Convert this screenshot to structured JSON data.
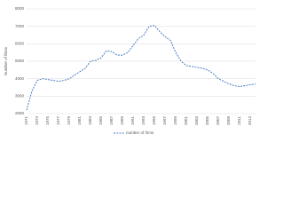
{
  "chart_data": {
    "type": "line",
    "y_label": "Number of firms",
    "categories": [
      "1971",
      null,
      "1973",
      null,
      "1975",
      null,
      "1977",
      null,
      "1979",
      null,
      "1981",
      null,
      "1983",
      null,
      "1985",
      null,
      "1987",
      null,
      "1989",
      null,
      "1991",
      null,
      "1993",
      null,
      "1995",
      null,
      "1997",
      null,
      "1999",
      null,
      "2001",
      null,
      "2003",
      null,
      "2005",
      null,
      "2007",
      null,
      "2009",
      null,
      "2011",
      null,
      "2013",
      null
    ],
    "series": [
      {
        "name": "number of firms",
        "color": "#4a7fc1",
        "values": [
          2200,
          3300,
          3900,
          4000,
          3950,
          3900,
          3850,
          3900,
          4000,
          4200,
          4400,
          4600,
          5000,
          5050,
          5200,
          5600,
          5550,
          5350,
          5350,
          5500,
          5900,
          6300,
          6500,
          7000,
          7050,
          6700,
          6400,
          6200,
          5500,
          5000,
          4750,
          4700,
          4650,
          4600,
          4500,
          4300,
          4000,
          3850,
          3700,
          3600,
          3550,
          3600,
          3650,
          3700
        ]
      }
    ],
    "ylim": [
      2000,
      8000
    ],
    "yticks": [
      2000,
      3000,
      4000,
      5000,
      6000,
      7000,
      8000
    ],
    "grid": true,
    "legend": "bottom",
    "dashed": true
  }
}
